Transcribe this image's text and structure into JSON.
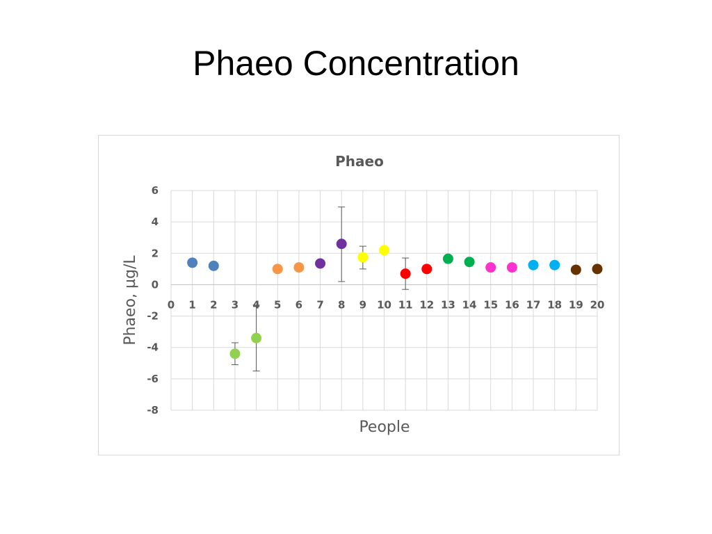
{
  "slide": {
    "title": "Phaeo Concentration"
  },
  "chart_data": {
    "type": "scatter",
    "title": "Phaeo",
    "xlabel": "People",
    "ylabel": "Phaeo, µg/L",
    "xlim": [
      0,
      20
    ],
    "ylim": [
      -8,
      6
    ],
    "x_ticks": [
      0,
      1,
      2,
      3,
      4,
      5,
      6,
      7,
      8,
      9,
      10,
      11,
      12,
      13,
      14,
      15,
      16,
      17,
      18,
      19,
      20
    ],
    "y_ticks": [
      6,
      4,
      2,
      0,
      -2,
      -4,
      -6,
      -8
    ],
    "grid": true,
    "legend": "none",
    "points": [
      {
        "x": 1,
        "y": 1.4,
        "color": "#4f81bd"
      },
      {
        "x": 2,
        "y": 1.2,
        "color": "#4f81bd"
      },
      {
        "x": 3,
        "y": -4.4,
        "color": "#92d050",
        "err_low": -5.1,
        "err_high": -3.7
      },
      {
        "x": 4,
        "y": -3.4,
        "color": "#92d050",
        "err_low": -5.5,
        "err_high": -1.3
      },
      {
        "x": 5,
        "y": 1.0,
        "color": "#f79646"
      },
      {
        "x": 6,
        "y": 1.1,
        "color": "#f79646"
      },
      {
        "x": 7,
        "y": 1.35,
        "color": "#7030a0"
      },
      {
        "x": 8,
        "y": 2.6,
        "color": "#7030a0",
        "err_low": 0.2,
        "err_high": 4.95
      },
      {
        "x": 9,
        "y": 1.75,
        "color": "#ffff00",
        "err_low": 1.0,
        "err_high": 2.45
      },
      {
        "x": 10,
        "y": 2.2,
        "color": "#ffff00"
      },
      {
        "x": 11,
        "y": 0.7,
        "color": "#ff0000",
        "err_low": -0.3,
        "err_high": 1.7
      },
      {
        "x": 12,
        "y": 1.0,
        "color": "#ff0000"
      },
      {
        "x": 13,
        "y": 1.65,
        "color": "#00b050"
      },
      {
        "x": 14,
        "y": 1.45,
        "color": "#00b050"
      },
      {
        "x": 15,
        "y": 1.1,
        "color": "#ff33cc"
      },
      {
        "x": 16,
        "y": 1.1,
        "color": "#ff33cc"
      },
      {
        "x": 17,
        "y": 1.25,
        "color": "#00b0f0"
      },
      {
        "x": 18,
        "y": 1.25,
        "color": "#00b0f0"
      },
      {
        "x": 19,
        "y": 0.95,
        "color": "#663300"
      },
      {
        "x": 20,
        "y": 1.0,
        "color": "#663300"
      }
    ]
  }
}
